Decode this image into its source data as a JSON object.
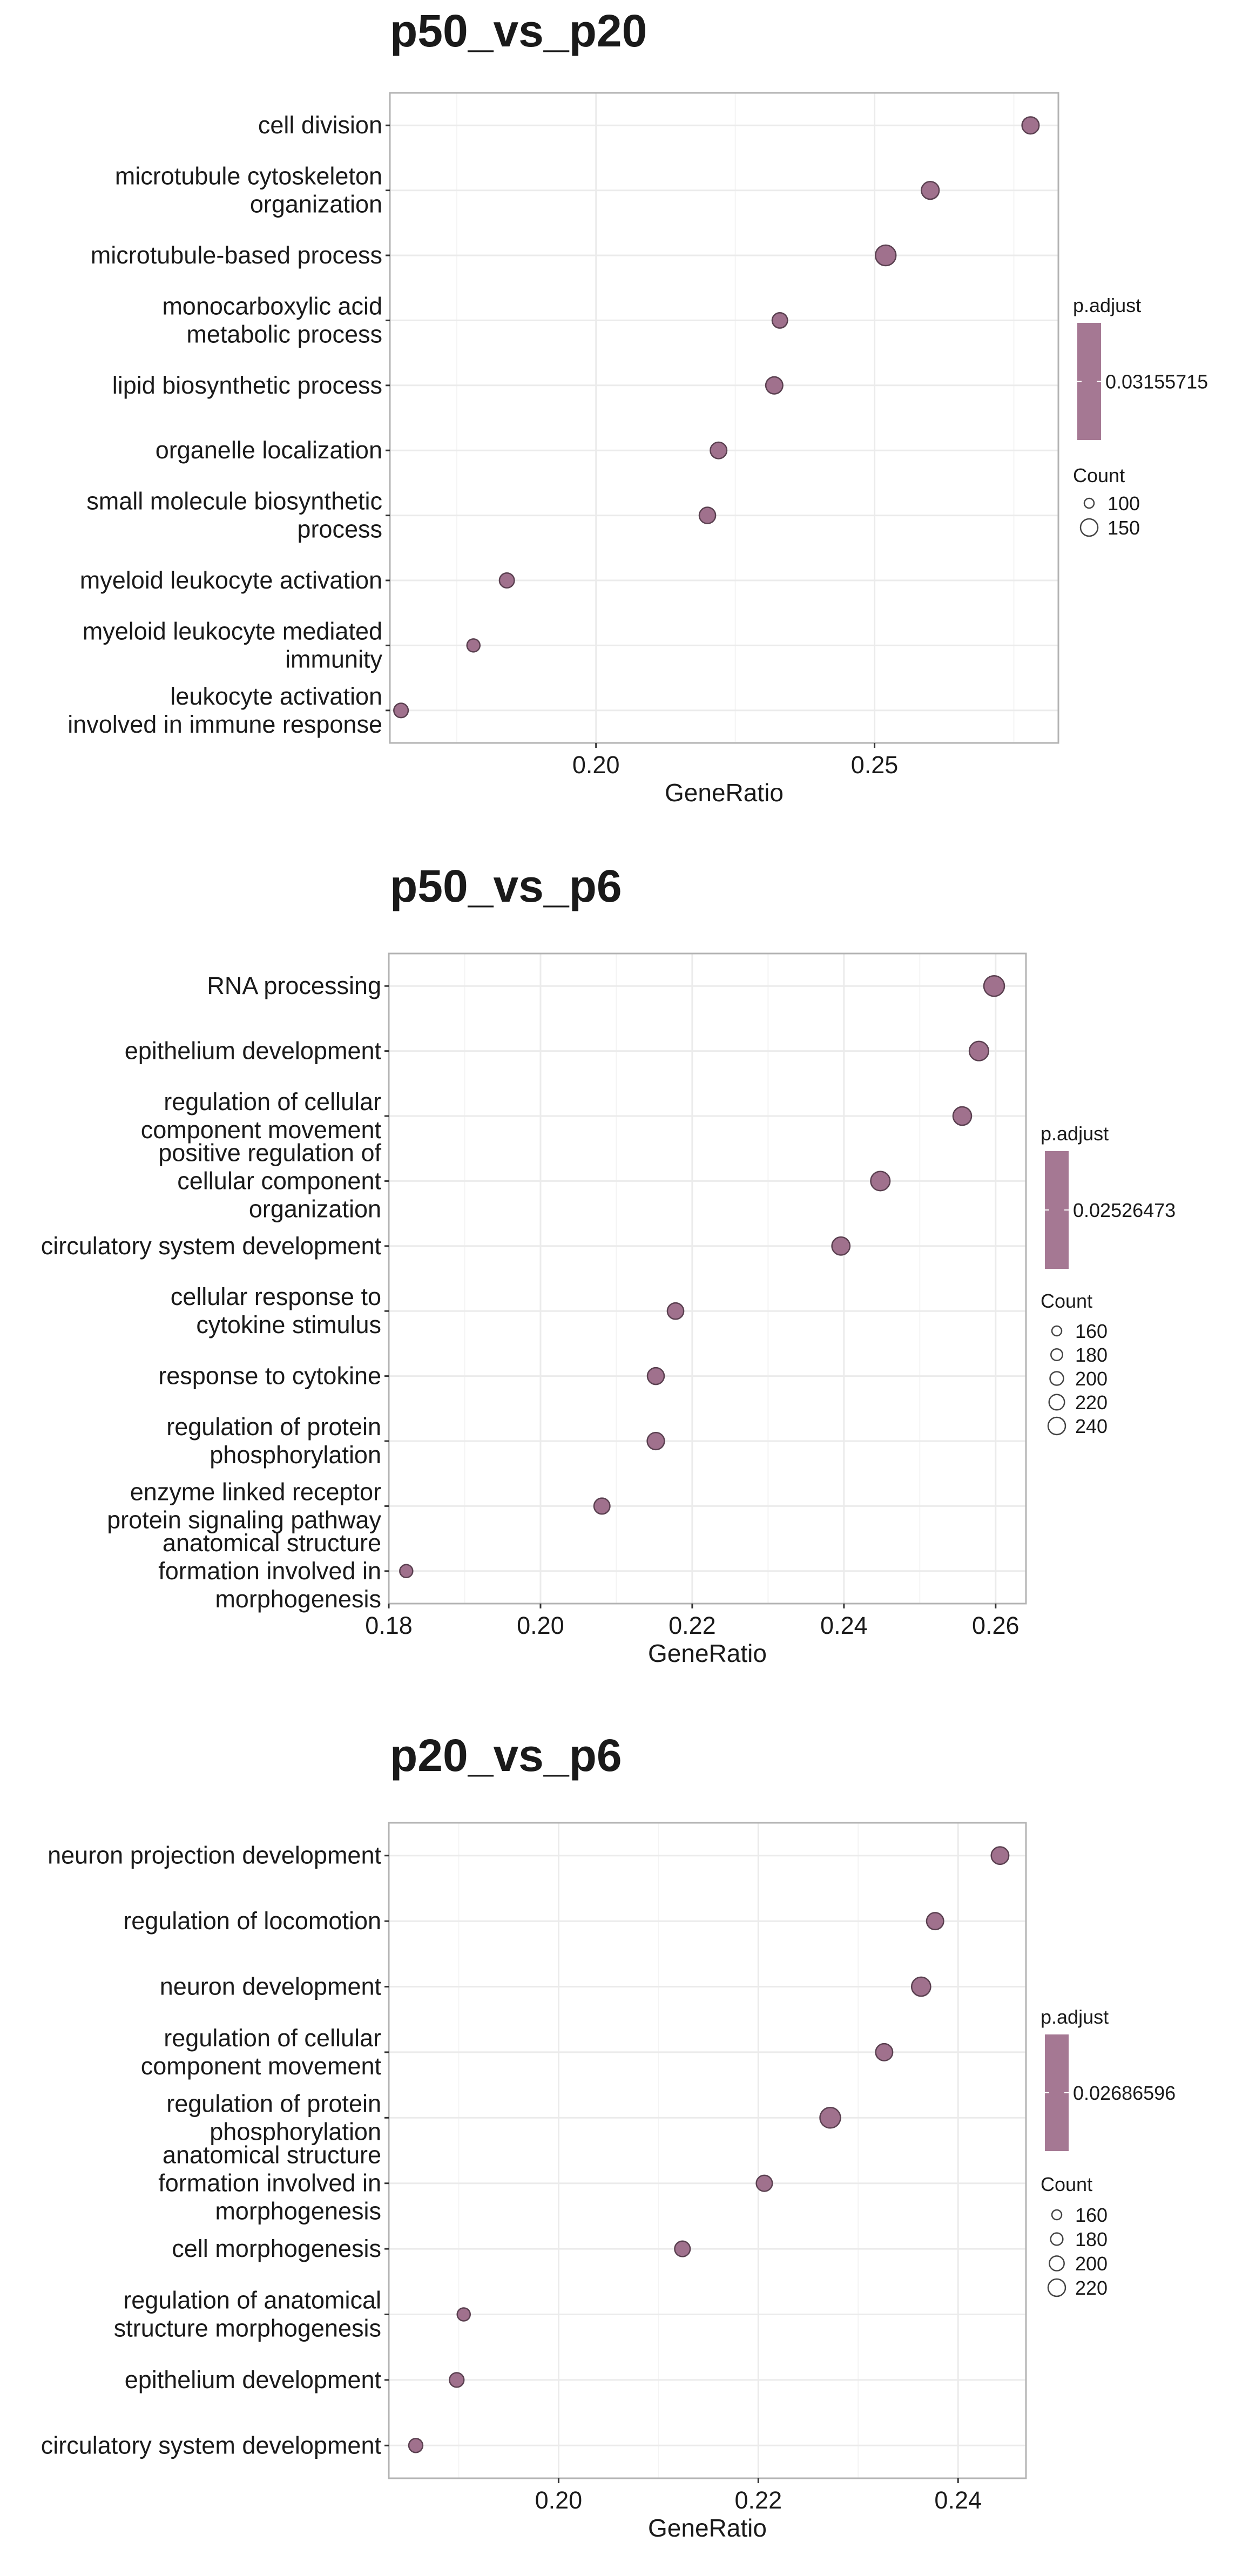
{
  "chart_data": [
    {
      "type": "scatter",
      "title": "p50_vs_p20",
      "xlabel": "GeneRatio",
      "ylabel": "",
      "xlim": [
        0.163,
        0.283
      ],
      "xticks": [
        "0.20",
        "0.25"
      ],
      "xtick_values": [
        0.2,
        0.25
      ],
      "categories": [
        "cell division",
        "microtubule cytoskeleton organization",
        "microtubule-based process",
        "monocarboxylic acid metabolic process",
        "lipid biosynthetic process",
        "organelle localization",
        "small molecule biosynthetic process",
        "myeloid leukocyte activation",
        "myeloid leukocyte mediated immunity",
        "leukocyte activation involved in immune response"
      ],
      "category_lines": [
        [
          "cell division"
        ],
        [
          "microtubule cytoskeleton",
          "organization"
        ],
        [
          "microtubule-based process"
        ],
        [
          "monocarboxylic acid",
          "metabolic process"
        ],
        [
          "lipid biosynthetic process"
        ],
        [
          "organelle localization"
        ],
        [
          "small molecule biosynthetic",
          "process"
        ],
        [
          "myeloid leukocyte activation"
        ],
        [
          "myeloid leukocyte mediated",
          "immunity"
        ],
        [
          "leukocyte activation",
          "involved in immune response"
        ]
      ],
      "x": [
        0.278,
        0.26,
        0.252,
        0.233,
        0.232,
        0.222,
        0.22,
        0.184,
        0.178,
        0.165
      ],
      "count": [
        118,
        125,
        155,
        100,
        118,
        112,
        110,
        95,
        75,
        90
      ],
      "grid": true,
      "point_color": "#a0718d",
      "legend": {
        "placement": "right",
        "color_title": "p.adjust",
        "color_value": "0.03155715",
        "size_title": "Count",
        "size_values": [
          "100",
          "150"
        ],
        "size_numbers": [
          100,
          150
        ]
      }
    },
    {
      "type": "scatter",
      "title": "p50_vs_p6",
      "xlabel": "GeneRatio",
      "ylabel": "",
      "xlim": [
        0.18,
        0.264
      ],
      "xticks": [
        "0.18",
        "0.20",
        "0.22",
        "0.24",
        "0.26"
      ],
      "xtick_values": [
        0.18,
        0.2,
        0.22,
        0.24,
        0.26
      ],
      "categories": [
        "RNA processing",
        "epithelium development",
        "regulation of cellular component movement",
        "positive regulation of cellular component organization",
        "circulatory system development",
        "cellular response to cytokine stimulus",
        "response to cytokine",
        "regulation of protein phosphorylation",
        "enzyme linked receptor protein signaling pathway",
        "anatomical structure formation involved in morphogenesis"
      ],
      "category_lines": [
        [
          "RNA processing"
        ],
        [
          "epithelium development"
        ],
        [
          "regulation of cellular",
          "component movement"
        ],
        [
          "positive regulation of",
          "cellular component",
          "organization"
        ],
        [
          "circulatory system development"
        ],
        [
          "cellular response to",
          "cytokine stimulus"
        ],
        [
          "response to cytokine"
        ],
        [
          "regulation of protein",
          "phosphorylation"
        ],
        [
          "enzyme linked receptor",
          "protein signaling pathway"
        ],
        [
          "anatomical structure",
          "formation involved in",
          "morphogenesis"
        ]
      ],
      "x": [
        0.2598,
        0.2578,
        0.2556,
        0.2448,
        0.2396,
        0.2178,
        0.2152,
        0.2152,
        0.2081,
        0.1823
      ],
      "count": [
        240,
        225,
        215,
        225,
        210,
        190,
        195,
        200,
        185,
        150
      ],
      "grid": true,
      "point_color": "#a0718d",
      "legend": {
        "placement": "right",
        "color_title": "p.adjust",
        "color_value": "0.02526473",
        "size_title": "Count",
        "size_values": [
          "160",
          "180",
          "200",
          "220",
          "240"
        ],
        "size_numbers": [
          160,
          180,
          200,
          220,
          240
        ]
      }
    },
    {
      "type": "scatter",
      "title": "p20_vs_p6",
      "xlabel": "GeneRatio",
      "ylabel": "",
      "xlim": [
        0.183,
        0.2468
      ],
      "xticks": [
        "0.20",
        "0.22",
        "0.24"
      ],
      "xtick_values": [
        0.2,
        0.22,
        0.24
      ],
      "categories": [
        "neuron projection development",
        "regulation of locomotion",
        "neuron development",
        "regulation of cellular component movement",
        "regulation of protein phosphorylation",
        "anatomical structure formation involved in morphogenesis",
        "cell morphogenesis",
        "regulation of anatomical structure morphogenesis",
        "epithelium development",
        "circulatory system development"
      ],
      "category_lines": [
        [
          "neuron projection development"
        ],
        [
          "regulation of locomotion"
        ],
        [
          "neuron development"
        ],
        [
          "regulation of cellular",
          "component movement"
        ],
        [
          "regulation of protein",
          "phosphorylation"
        ],
        [
          "anatomical structure",
          "formation involved in",
          "morphogenesis"
        ],
        [
          "cell morphogenesis"
        ],
        [
          "regulation of anatomical",
          "structure morphogenesis"
        ],
        [
          "epithelium development"
        ],
        [
          "circulatory system development"
        ]
      ],
      "x": [
        0.2442,
        0.2377,
        0.2363,
        0.2326,
        0.2272,
        0.2206,
        0.2124,
        0.1905,
        0.1898,
        0.1857
      ],
      "count": [
        190,
        185,
        205,
        185,
        220,
        175,
        170,
        145,
        160,
        155
      ],
      "grid": true,
      "point_color": "#a0718d",
      "legend": {
        "placement": "right",
        "color_title": "p.adjust",
        "color_value": "0.02686596",
        "size_title": "Count",
        "size_values": [
          "160",
          "180",
          "200",
          "220"
        ],
        "size_numbers": [
          160,
          180,
          200,
          220
        ]
      }
    }
  ]
}
